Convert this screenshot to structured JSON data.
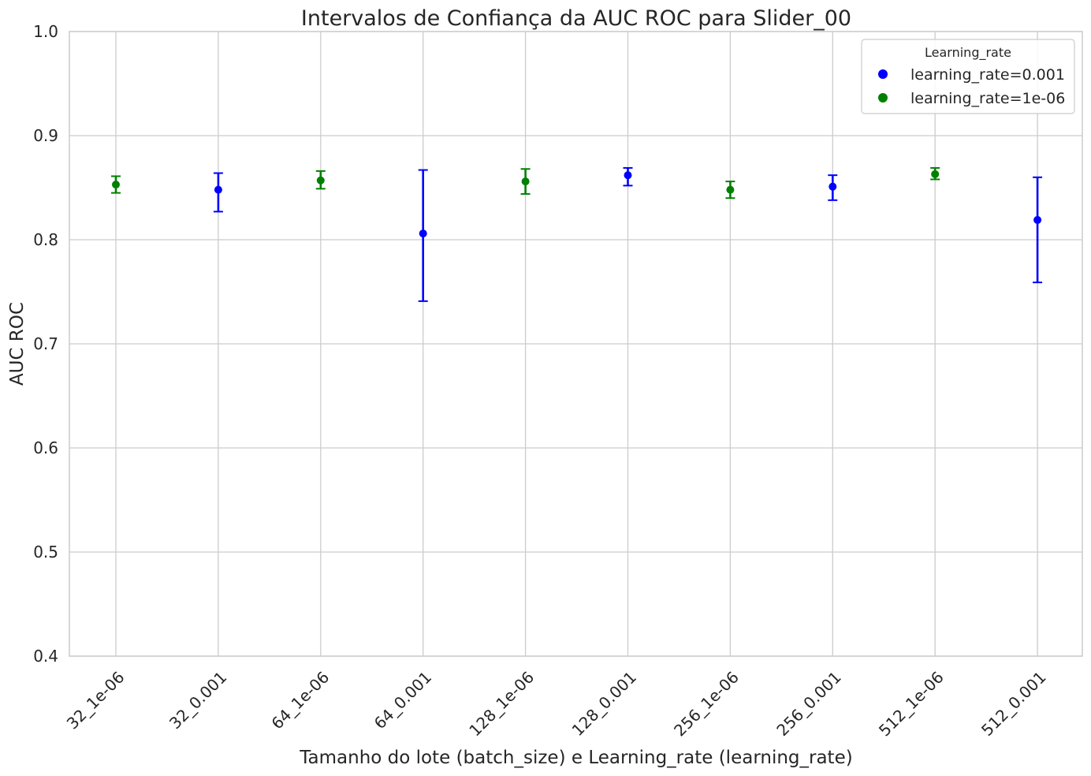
{
  "chart_data": {
    "type": "scatter",
    "title": "Intervalos de Confiança da AUC ROC para Slider_00",
    "xlabel": "Tamanho do lote (batch_size) e Learning_rate (learning_rate)",
    "ylabel": "AUC ROC",
    "ylim": [
      0.4,
      1.0
    ],
    "yticks": [
      "0.4",
      "0.5",
      "0.6",
      "0.7",
      "0.8",
      "0.9",
      "1.0"
    ],
    "grid": true,
    "legend": {
      "title": "Learning_rate",
      "placement": "top-right",
      "entries": [
        {
          "label": "learning_rate=0.001",
          "color": "#0000ff"
        },
        {
          "label": "learning_rate=1e-06",
          "color": "#008000"
        }
      ]
    },
    "categories": [
      "32_1e-06",
      "32_0.001",
      "64_1e-06",
      "64_0.001",
      "128_1e-06",
      "128_0.001",
      "256_1e-06",
      "256_0.001",
      "512_1e-06",
      "512_0.001"
    ],
    "points": [
      {
        "category": "32_1e-06",
        "series": "learning_rate=1e-06",
        "y": 0.853,
        "low": 0.845,
        "high": 0.861,
        "color": "#008000"
      },
      {
        "category": "32_0.001",
        "series": "learning_rate=0.001",
        "y": 0.848,
        "low": 0.827,
        "high": 0.864,
        "color": "#0000ff"
      },
      {
        "category": "64_1e-06",
        "series": "learning_rate=1e-06",
        "y": 0.857,
        "low": 0.849,
        "high": 0.866,
        "color": "#008000"
      },
      {
        "category": "64_0.001",
        "series": "learning_rate=0.001",
        "y": 0.806,
        "low": 0.741,
        "high": 0.867,
        "color": "#0000ff"
      },
      {
        "category": "128_1e-06",
        "series": "learning_rate=1e-06",
        "y": 0.856,
        "low": 0.844,
        "high": 0.868,
        "color": "#008000"
      },
      {
        "category": "128_0.001",
        "series": "learning_rate=0.001",
        "y": 0.862,
        "low": 0.852,
        "high": 0.869,
        "color": "#0000ff"
      },
      {
        "category": "256_1e-06",
        "series": "learning_rate=1e-06",
        "y": 0.848,
        "low": 0.84,
        "high": 0.856,
        "color": "#008000"
      },
      {
        "category": "256_0.001",
        "series": "learning_rate=0.001",
        "y": 0.851,
        "low": 0.838,
        "high": 0.862,
        "color": "#0000ff"
      },
      {
        "category": "512_1e-06",
        "series": "learning_rate=1e-06",
        "y": 0.863,
        "low": 0.858,
        "high": 0.869,
        "color": "#008000"
      },
      {
        "category": "512_0.001",
        "series": "learning_rate=0.001",
        "y": 0.819,
        "low": 0.759,
        "high": 0.86,
        "color": "#0000ff"
      }
    ]
  }
}
